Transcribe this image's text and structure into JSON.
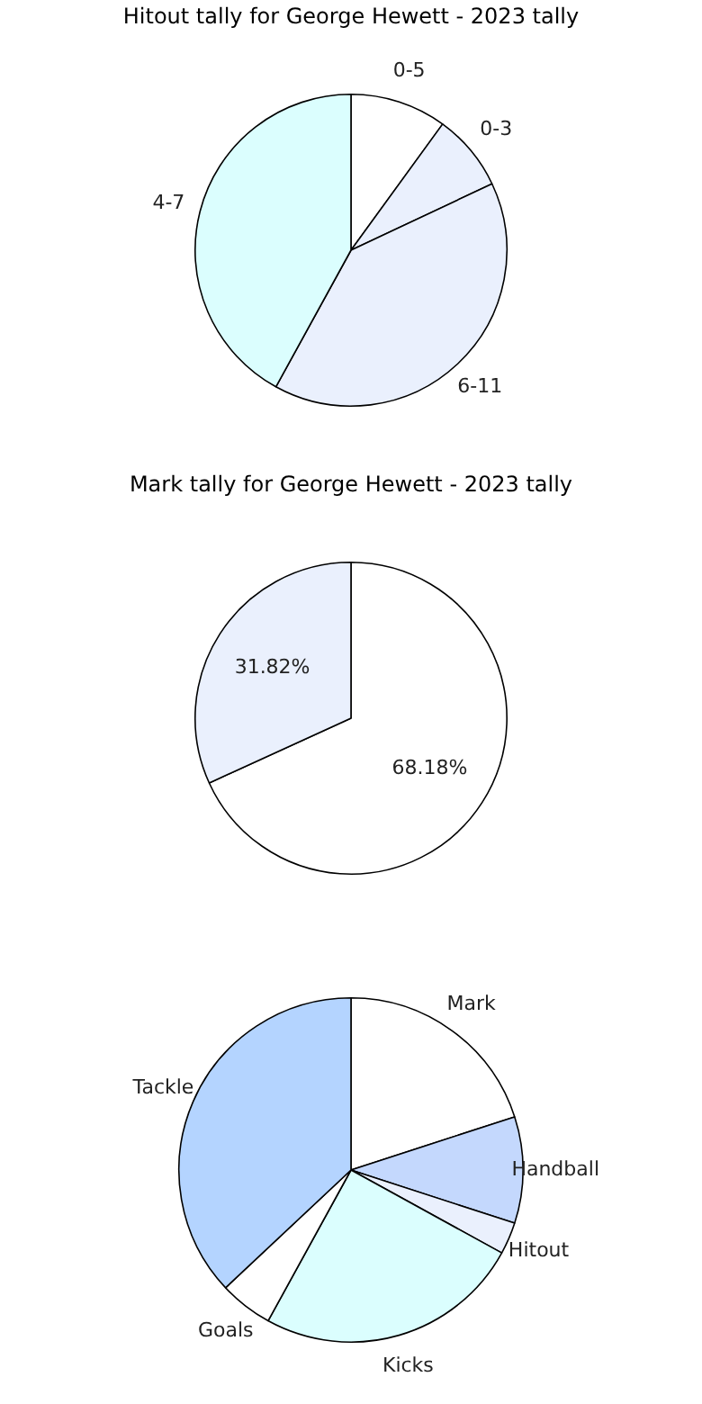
{
  "chart_data": [
    {
      "type": "pie",
      "title": "Hitout tally for George Hewett - 2023 tally",
      "categories": [
        "0-5",
        "0-3",
        "6-11",
        "4-7"
      ],
      "values": [
        10,
        8,
        40,
        42
      ],
      "colors": [
        "#ffffff",
        "#eaf0fd",
        "#eaf0fd",
        "#dbfefe"
      ],
      "legend": false
    },
    {
      "type": "pie",
      "title": "Mark tally for George Hewett - 2023 tally",
      "categories": [
        null,
        null
      ],
      "values": [
        68.18,
        31.82
      ],
      "colors": [
        "#ffffff",
        "#eaf0fd"
      ],
      "value_labels": [
        "68.18%",
        "31.82%"
      ],
      "legend": false
    },
    {
      "type": "pie",
      "categories": [
        "Mark",
        "Handball",
        "Hitout",
        "Kicks",
        "Goals",
        "Tackle"
      ],
      "values": [
        20,
        10,
        3,
        25,
        5,
        37
      ],
      "colors": [
        "#ffffff",
        "#c4d8fd",
        "#eaf0fd",
        "#dbfefe",
        "#ffffff",
        "#b4d4ff"
      ],
      "legend": false
    }
  ]
}
